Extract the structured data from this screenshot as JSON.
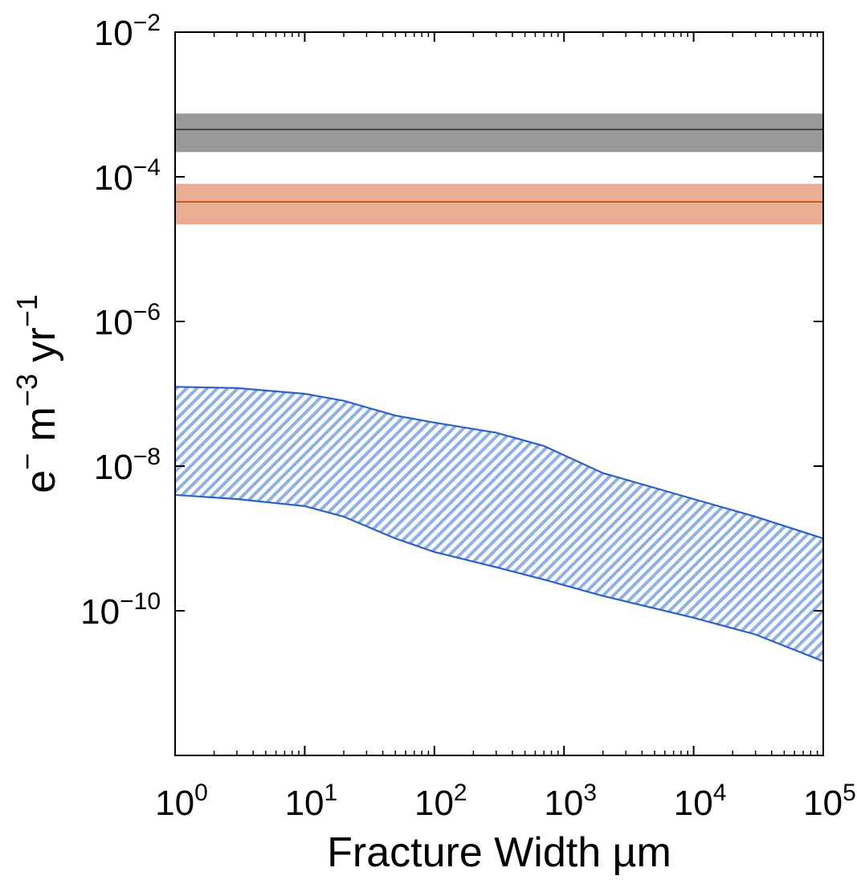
{
  "chart_data": {
    "type": "area",
    "title": "",
    "xlabel": "Fracture Width µm",
    "ylabel": {
      "parts": [
        "e",
        "−",
        " m",
        "−3",
        " yr",
        "−1"
      ]
    },
    "xscale": "log",
    "yscale": "log",
    "xlim": [
      1,
      100000
    ],
    "ylim": [
      1e-12,
      0.01
    ],
    "grid": false,
    "legend": "none",
    "x_ticks": [
      {
        "value": 1,
        "base": "10",
        "exp": "0"
      },
      {
        "value": 10,
        "base": "10",
        "exp": "1"
      },
      {
        "value": 100,
        "base": "10",
        "exp": "2"
      },
      {
        "value": 1000,
        "base": "10",
        "exp": "3"
      },
      {
        "value": 10000,
        "base": "10",
        "exp": "4"
      },
      {
        "value": 100000,
        "base": "10",
        "exp": "5"
      }
    ],
    "y_ticks": [
      {
        "value": 1e-10,
        "base": "10",
        "exp": "−10"
      },
      {
        "value": 1e-08,
        "base": "10",
        "exp": "−8"
      },
      {
        "value": 1e-06,
        "base": "10",
        "exp": "−6"
      },
      {
        "value": 0.0001,
        "base": "10",
        "exp": "−4"
      },
      {
        "value": 0.01,
        "base": "10",
        "exp": "−2"
      }
    ],
    "series": [
      {
        "kind": "band",
        "fill": "#999999",
        "line_color": "#333333",
        "x": [
          1,
          100000
        ],
        "center": [
          0.00045,
          0.00045
        ],
        "lower": [
          0.00022,
          0.00022
        ],
        "upper": [
          0.00075,
          0.00075
        ]
      },
      {
        "kind": "band",
        "fill": "#e8ad92",
        "line_color": "#c2410c",
        "x": [
          1,
          100000
        ],
        "center": [
          4.5e-05,
          4.5e-05
        ],
        "lower": [
          2.2e-05,
          2.2e-05
        ],
        "upper": [
          8e-05,
          8e-05
        ]
      },
      {
        "kind": "hatched_band",
        "fill": "#8fb0e8",
        "line_color": "#2c62c8",
        "x": [
          1,
          3,
          10,
          20,
          50,
          100,
          300,
          700,
          2000,
          10000,
          30000,
          100000
        ],
        "upper": [
          1.25e-07,
          1.2e-07,
          1e-07,
          8e-08,
          5e-08,
          4e-08,
          2.9e-08,
          1.9e-08,
          8e-09,
          3.5e-09,
          2e-09,
          1e-09
        ],
        "lower": [
          4e-09,
          3.5e-09,
          2.8e-09,
          2e-09,
          1e-09,
          6.5e-10,
          4e-10,
          2.7e-10,
          1.6e-10,
          8e-11,
          4.7e-11,
          2e-11
        ]
      }
    ],
    "colors": {
      "axis": "#000000",
      "background": "#ffffff"
    }
  }
}
